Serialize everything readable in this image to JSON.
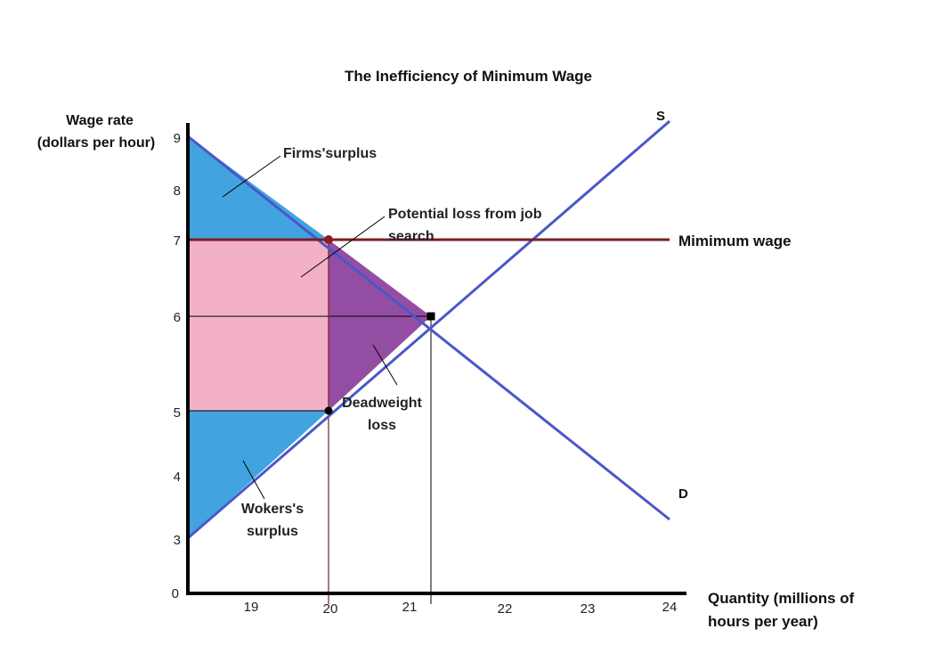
{
  "chart_data": {
    "type": "line",
    "title": "The Inefficiency of Minimum Wage",
    "ylabel_lines": [
      "Wage rate",
      "(dollars per hour)"
    ],
    "xlabel_lines": [
      "Quantity (millions of",
      "hours per year)"
    ],
    "x_ticks": [
      "19",
      "20",
      "21",
      "22",
      "23",
      "24"
    ],
    "y_ticks": [
      "0",
      "3",
      "4",
      "5",
      "6",
      "7",
      "8",
      "9"
    ],
    "series": [
      {
        "name": "S",
        "points": [
          [
            18.3,
            3
          ],
          [
            21.3,
            6
          ],
          [
            24.0,
            9.4
          ]
        ]
      },
      {
        "name": "D",
        "points": [
          [
            18.3,
            9
          ],
          [
            21.3,
            6
          ],
          [
            24.0,
            3.3
          ]
        ]
      },
      {
        "name": "Mimimum wage",
        "y": 7
      }
    ],
    "equilibrium": {
      "x": 21.3,
      "y": 6
    },
    "min_wage_point": {
      "x": 20,
      "y": 7
    },
    "supply_at_min_quantity": {
      "x": 20,
      "y": 5
    },
    "regions": [
      {
        "name": "Firms'surplus",
        "color": "#41a3e0"
      },
      {
        "name": "Potential loss from job search",
        "color": "#f3b1c8"
      },
      {
        "name": "Deadweight loss",
        "color": "#934ea3"
      },
      {
        "name": "Wokers's surplus",
        "color": "#41a3e0"
      }
    ],
    "annotations": {
      "firms_surplus": "Firms'surplus",
      "potential_loss_1": "Potential loss from job",
      "potential_loss_2": "search",
      "deadweight_1": "Deadweight",
      "deadweight_2": "loss",
      "workers_1": "Wokers's",
      "workers_2": "surplus"
    },
    "colors": {
      "curves": "#4a57c9",
      "min_wage": "#7a1f24",
      "axis": "#000000"
    }
  }
}
